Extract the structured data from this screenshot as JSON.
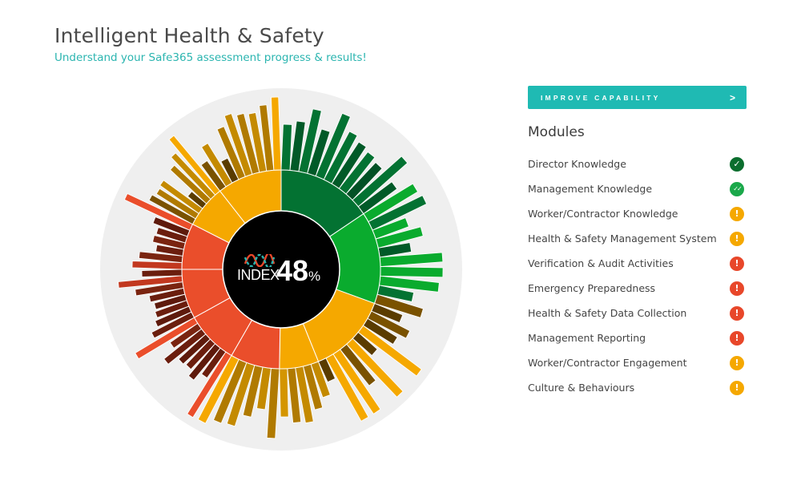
{
  "header": {
    "title": "Intelligent Health & Safety",
    "subtitle": "Understand your Safe365 assessment progress & results!"
  },
  "cta": {
    "label": "IMPROVE CAPABILITY",
    "chevron": ">"
  },
  "modules": {
    "title": "Modules",
    "status_colors": {
      "complete": "#0b6e2e",
      "complete_double": "#1aa84a",
      "warning": "#f5a800",
      "alert": "#e8472a"
    },
    "status_glyphs": {
      "complete": "✓",
      "complete_double": "✓✓",
      "warning": "!",
      "alert": "!"
    },
    "items": [
      {
        "label": "Director Knowledge",
        "status": "complete"
      },
      {
        "label": "Management Knowledge",
        "status": "complete_double"
      },
      {
        "label": "Worker/Contractor Knowledge",
        "status": "warning"
      },
      {
        "label": "Health & Safety Management System",
        "status": "warning"
      },
      {
        "label": "Verification & Audit Activities",
        "status": "alert"
      },
      {
        "label": "Emergency Preparedness",
        "status": "alert"
      },
      {
        "label": "Health & Safety Data Collection",
        "status": "alert"
      },
      {
        "label": "Management Reporting",
        "status": "alert"
      },
      {
        "label": "Worker/Contractor Engagement",
        "status": "warning"
      },
      {
        "label": "Culture & Behaviours",
        "status": "warning"
      }
    ]
  },
  "index": {
    "word": "INDEX",
    "value": "48",
    "unit": "%",
    "logo_colors": [
      "#e8472a",
      "#2bb5b0"
    ]
  },
  "chart_data": {
    "type": "sunburst",
    "title": "Safe365 Index",
    "center_value": 48,
    "center": [
      351,
      336
    ],
    "background_radius": 226,
    "hole_radius": 73,
    "inner_radius_outer": 124,
    "bar_max_radius": 215,
    "background_color": "#efefef",
    "inner_ring": [
      {
        "start": 0,
        "end": 56,
        "color": "#037232"
      },
      {
        "start": 56,
        "end": 110,
        "color": "#0aab2e"
      },
      {
        "start": 110,
        "end": 158,
        "color": "#f5a800"
      },
      {
        "start": 158,
        "end": 181,
        "color": "#f5a800"
      },
      {
        "start": 181,
        "end": 210,
        "color": "#ea4e2b"
      },
      {
        "start": 210,
        "end": 241,
        "color": "#ea4e2b"
      },
      {
        "start": 241,
        "end": 270,
        "color": "#ea4e2b"
      },
      {
        "start": 270,
        "end": 297,
        "color": "#ea4e2b"
      },
      {
        "start": 297,
        "end": 322,
        "color": "#f5a800"
      },
      {
        "start": 322,
        "end": 360,
        "color": "#f5a800"
      }
    ],
    "bars": [
      {
        "from": 0,
        "to": 56,
        "colors": [
          "#037232",
          "#015a28",
          "#037232",
          "#015a28",
          "#037232",
          "#037232",
          "#015a28",
          "#037232",
          "#025126",
          "#037232",
          "#015a28"
        ],
        "lengths": [
          57,
          62,
          80,
          58,
          85,
          68,
          62,
          58,
          54,
          82,
          52
        ]
      },
      {
        "from": 56,
        "to": 110,
        "colors": [
          "#0aab2e",
          "#037232",
          "#0aab2e",
          "#0aab2e",
          "#015a28",
          "#0aab2e",
          "#0aab2e",
          "#0aab2e",
          "#037232",
          "#7a5200"
        ],
        "lengths": [
          72,
          75,
          44,
          58,
          40,
          78,
          78,
          74,
          44,
          60
        ]
      },
      {
        "from": 110,
        "to": 158,
        "colors": [
          "#5a3c00",
          "#7a5200",
          "#5a3c00",
          "#f5a800",
          "#5a3c00",
          "#f5a800",
          "#7a5200",
          "#f5a800",
          "#f5a800",
          "#5a3c00"
        ],
        "lengths": [
          38,
          54,
          44,
          92,
          32,
          92,
          58,
          90,
          90,
          28
        ]
      },
      {
        "from": 158,
        "to": 181,
        "colors": [
          "#c48a00",
          "#b07a00",
          "#c48a00",
          "#b07a00",
          "#d49500"
        ],
        "lengths": [
          44,
          56,
          70,
          68,
          60
        ]
      },
      {
        "from": 181,
        "to": 210,
        "colors": [
          "#b07a00",
          "#c48a00",
          "#b07a00",
          "#c48a00",
          "#b07a00",
          "#f5a800"
        ],
        "lengths": [
          87,
          52,
          64,
          80,
          82,
          90
        ]
      },
      {
        "from": 210,
        "to": 241,
        "colors": [
          "#ea4e2b",
          "#6b1e0e",
          "#5e1a0c",
          "#6b1e0e",
          "#5e1a0c",
          "#6b1e0e",
          "#7a2410",
          "#ea4e2b"
        ],
        "lengths": [
          98,
          40,
          52,
          44,
          46,
          60,
          42,
          86
        ]
      },
      {
        "from": 241,
        "to": 270,
        "colors": [
          "#6b1e0e",
          "#5e1a0c",
          "#6b1e0e",
          "#5e1a0c",
          "#6b1e0e",
          "#7a2410",
          "#c2381f",
          "#6b1e0e"
        ],
        "lengths": [
          56,
          46,
          42,
          40,
          44,
          60,
          80,
          50
        ]
      },
      {
        "from": 270,
        "to": 297,
        "colors": [
          "#c2381f",
          "#7a2410",
          "#6b1e0e",
          "#7a2410",
          "#6b1e0e",
          "#5e1a0c",
          "#ea4e2b"
        ],
        "lengths": [
          62,
          54,
          34,
          40,
          38,
          46,
          90
        ]
      },
      {
        "from": 297,
        "to": 322,
        "colors": [
          "#7a5200",
          "#b07a00",
          "#c48a00",
          "#5a3c00",
          "#b07a00",
          "#c48a00",
          "#f5a800"
        ],
        "lengths": [
          62,
          58,
          60,
          24,
          62,
          72,
          90
        ]
      },
      {
        "from": 322,
        "to": 360,
        "colors": [
          "#7a5200",
          "#c48a00",
          "#5a3c00",
          "#b07a00",
          "#c48a00",
          "#b07a00",
          "#c48a00",
          "#b07a00",
          "#f5a800"
        ],
        "lengths": [
          40,
          58,
          30,
          68,
          80,
          76,
          74,
          82,
          92
        ]
      }
    ]
  }
}
